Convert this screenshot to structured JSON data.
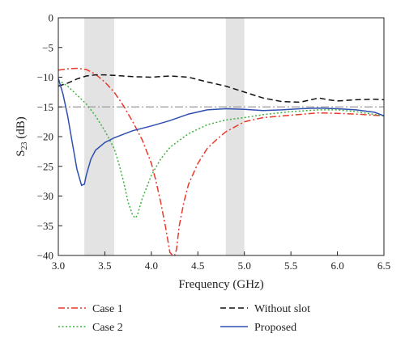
{
  "chart_data": {
    "type": "line",
    "xlabel": "Frequency (GHz)",
    "ylabel_main": "S",
    "ylabel_sub": "23",
    "ylabel_unit": " (dB)",
    "xlim": [
      3.0,
      6.5
    ],
    "ylim": [
      -40,
      0
    ],
    "xticks": [
      "3.0",
      "3.5",
      "4.0",
      "4.5",
      "5.0",
      "5.5",
      "6.0",
      "6.5"
    ],
    "yticks": [
      "0",
      "−5",
      "−10",
      "−15",
      "−20",
      "−25",
      "−30",
      "−35",
      "−40"
    ],
    "shaded_bands": [
      [
        3.28,
        3.6
      ],
      [
        4.8,
        5.0
      ]
    ],
    "reference_line": -15,
    "legend_placement": "bottom",
    "series": [
      {
        "name": "Case 1",
        "color": "#e8392a",
        "dash": "dashdot",
        "x": [
          3.0,
          3.1,
          3.2,
          3.3,
          3.4,
          3.5,
          3.6,
          3.7,
          3.8,
          3.9,
          4.0,
          4.05,
          4.1,
          4.15,
          4.2,
          4.23,
          4.25,
          4.27,
          4.3,
          4.35,
          4.4,
          4.5,
          4.6,
          4.7,
          4.8,
          5.0,
          5.2,
          5.5,
          5.8,
          6.0,
          6.2,
          6.5
        ],
        "y": [
          -8.8,
          -8.6,
          -8.5,
          -8.7,
          -9.5,
          -10.8,
          -12.5,
          -14.8,
          -17.5,
          -20.5,
          -24.5,
          -27.5,
          -31,
          -35,
          -39.5,
          -40,
          -40,
          -39,
          -35,
          -31,
          -28,
          -24.5,
          -22,
          -20.5,
          -19.2,
          -17.5,
          -16.8,
          -16.4,
          -16.0,
          -16.1,
          -16.2,
          -16.5
        ]
      },
      {
        "name": "Case 2",
        "color": "#3cb03c",
        "dash": "dotted",
        "x": [
          3.0,
          3.1,
          3.2,
          3.3,
          3.4,
          3.5,
          3.6,
          3.65,
          3.7,
          3.75,
          3.8,
          3.83,
          3.85,
          3.9,
          4.0,
          4.1,
          4.2,
          4.4,
          4.6,
          4.8,
          5.0,
          5.2,
          5.5,
          5.8,
          6.0,
          6.2,
          6.5
        ],
        "y": [
          -10.5,
          -11.5,
          -13.0,
          -14.5,
          -16.5,
          -19.0,
          -22.0,
          -24.5,
          -27.5,
          -31.0,
          -33.3,
          -33.7,
          -33.2,
          -30.5,
          -26.5,
          -23.8,
          -21.8,
          -19.5,
          -18.0,
          -17.2,
          -16.8,
          -16.3,
          -15.8,
          -15.5,
          -15.5,
          -15.8,
          -16.5
        ]
      },
      {
        "name": "Without slot",
        "color": "#111111",
        "dash": "dashed",
        "x": [
          3.0,
          3.1,
          3.2,
          3.3,
          3.4,
          3.5,
          3.6,
          3.8,
          4.0,
          4.2,
          4.4,
          4.6,
          4.8,
          5.0,
          5.2,
          5.4,
          5.6,
          5.8,
          5.9,
          6.0,
          6.2,
          6.4,
          6.5
        ],
        "y": [
          -11.5,
          -11.0,
          -10.3,
          -9.8,
          -9.6,
          -9.6,
          -9.7,
          -9.9,
          -10.0,
          -9.8,
          -10.0,
          -10.8,
          -11.5,
          -12.5,
          -13.5,
          -14.1,
          -14.2,
          -13.5,
          -13.8,
          -14.0,
          -13.8,
          -13.7,
          -13.8
        ]
      },
      {
        "name": "Proposed",
        "color": "#2f4fb0",
        "dash": "solid",
        "x": [
          3.0,
          3.05,
          3.1,
          3.15,
          3.2,
          3.25,
          3.28,
          3.3,
          3.35,
          3.4,
          3.5,
          3.6,
          3.7,
          3.8,
          4.0,
          4.2,
          4.4,
          4.6,
          4.8,
          5.0,
          5.2,
          5.4,
          5.6,
          5.8,
          6.0,
          6.2,
          6.4,
          6.5
        ],
        "y": [
          -10.2,
          -12.8,
          -16.5,
          -21.0,
          -25.5,
          -28.2,
          -28.0,
          -26.5,
          -23.8,
          -22.3,
          -21.0,
          -20.2,
          -19.6,
          -19.0,
          -18.2,
          -17.3,
          -16.2,
          -15.5,
          -15.3,
          -15.4,
          -15.6,
          -15.5,
          -15.3,
          -15.2,
          -15.3,
          -15.5,
          -15.9,
          -16.5
        ]
      }
    ]
  }
}
